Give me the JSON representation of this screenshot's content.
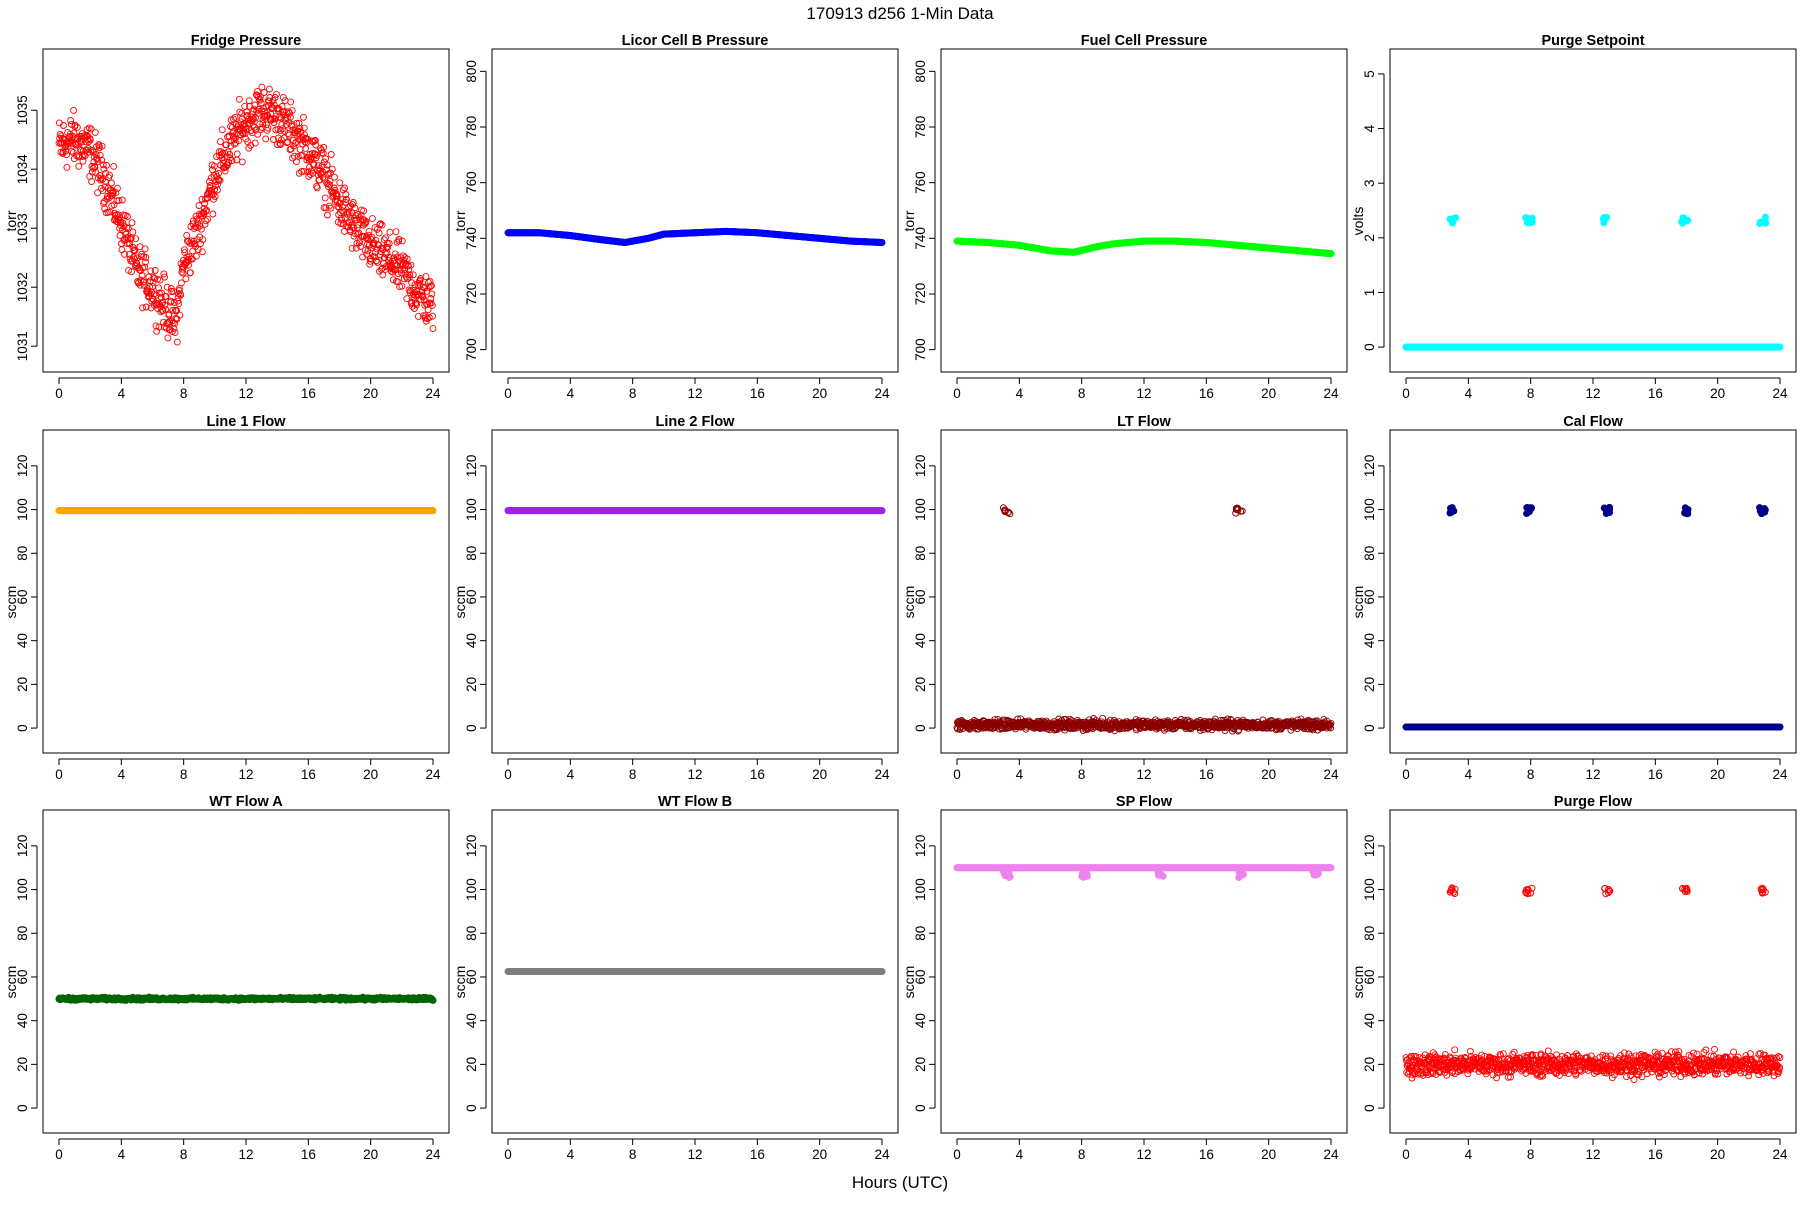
{
  "figure": {
    "title": "170913   d256   1-Min Data",
    "xlabel": "Hours (UTC)"
  },
  "chart_data": [
    {
      "type": "scatter",
      "title": "Fridge Pressure",
      "ylabel": "torr",
      "color": "#ff0000",
      "marker": "open-circle",
      "xlim": [
        0,
        24
      ],
      "xticks": [
        0,
        4,
        8,
        12,
        16,
        20,
        24
      ],
      "ylim": [
        1030.8,
        1035.8
      ],
      "yticks": [
        1031,
        1032,
        1033,
        1034,
        1035
      ],
      "series": [
        {
          "x": [
            0,
            1,
            2,
            3,
            4,
            5,
            6,
            7,
            7.5,
            8,
            9,
            10,
            11,
            12,
            13,
            14,
            15,
            16,
            17,
            18,
            19,
            20,
            21,
            22,
            23,
            24
          ],
          "y": [
            1034.4,
            1034.5,
            1034.3,
            1033.8,
            1033.1,
            1032.3,
            1032.0,
            1031.6,
            1031.4,
            1032.4,
            1033.0,
            1033.9,
            1034.4,
            1034.8,
            1035.0,
            1034.9,
            1034.6,
            1034.3,
            1033.9,
            1033.4,
            1033.0,
            1032.7,
            1032.5,
            1032.3,
            1031.9,
            1031.7
          ]
        }
      ],
      "scatter_spread": 0.45
    },
    {
      "type": "scatter",
      "title": "Licor Cell B Pressure",
      "ylabel": "torr",
      "color": "#0000ff",
      "marker": "filled",
      "xlim": [
        0,
        24
      ],
      "xticks": [
        0,
        4,
        8,
        12,
        16,
        20,
        24
      ],
      "ylim": [
        697,
        803
      ],
      "yticks": [
        700,
        720,
        740,
        760,
        780,
        800
      ],
      "series": [
        {
          "x": [
            0,
            2,
            4,
            6,
            7.5,
            9,
            10,
            12,
            14,
            16,
            18,
            20,
            22,
            24
          ],
          "y": [
            742,
            742,
            741,
            739.5,
            738.5,
            740,
            741.5,
            742,
            742.5,
            742,
            741,
            740,
            739,
            738.5
          ]
        }
      ],
      "scatter_spread": 0
    },
    {
      "type": "scatter",
      "title": "Fuel Cell Pressure",
      "ylabel": "torr",
      "color": "#00ff00",
      "marker": "filled",
      "xlim": [
        0,
        24
      ],
      "xticks": [
        0,
        4,
        8,
        12,
        16,
        20,
        24
      ],
      "ylim": [
        697,
        803
      ],
      "yticks": [
        700,
        720,
        740,
        760,
        780,
        800
      ],
      "series": [
        {
          "x": [
            0,
            2,
            4,
            6,
            7.5,
            9,
            10,
            12,
            14,
            16,
            18,
            20,
            22,
            24
          ],
          "y": [
            739,
            738.5,
            737.5,
            735.5,
            735,
            737,
            738,
            739,
            739,
            738.5,
            737.5,
            736.5,
            735.5,
            734.5
          ]
        }
      ],
      "scatter_spread": 0
    },
    {
      "type": "scatter",
      "title": "Purge Setpoint",
      "ylabel": "volts",
      "color": "#00ffff",
      "marker": "filled",
      "xlim": [
        0,
        24
      ],
      "xticks": [
        0,
        4,
        8,
        12,
        16,
        20,
        24
      ],
      "ylim": [
        -0.2,
        5.2
      ],
      "yticks": [
        0,
        1,
        2,
        3,
        4,
        5
      ],
      "series": [
        {
          "x": [
            0,
            24
          ],
          "y": [
            0,
            0
          ]
        }
      ],
      "scatter_spread": 0,
      "clusters": {
        "x": [
          3,
          7.9,
          12.9,
          17.9,
          22.9
        ],
        "y": 2.32,
        "color": "#00ffff"
      }
    },
    {
      "type": "scatter",
      "title": "Line 1 Flow",
      "ylabel": "sccm",
      "color": "#ffa500",
      "marker": "filled",
      "xlim": [
        0,
        24
      ],
      "xticks": [
        0,
        4,
        8,
        12,
        16,
        20,
        24
      ],
      "ylim": [
        -5,
        130
      ],
      "yticks": [
        0,
        20,
        40,
        60,
        80,
        100,
        120
      ],
      "series": [
        {
          "x": [
            0,
            24
          ],
          "y": [
            99.5,
            99.5
          ]
        }
      ],
      "scatter_spread": 0
    },
    {
      "type": "scatter",
      "title": "Line 2 Flow",
      "ylabel": "sccm",
      "color": "#a020f0",
      "marker": "filled",
      "xlim": [
        0,
        24
      ],
      "xticks": [
        0,
        4,
        8,
        12,
        16,
        20,
        24
      ],
      "ylim": [
        -5,
        130
      ],
      "yticks": [
        0,
        20,
        40,
        60,
        80,
        100,
        120
      ],
      "series": [
        {
          "x": [
            0,
            24
          ],
          "y": [
            99.5,
            99.5
          ]
        }
      ],
      "scatter_spread": 0
    },
    {
      "type": "scatter",
      "title": "LT Flow",
      "ylabel": "sccm",
      "color": "#8b0000",
      "marker": "open-circle",
      "xlim": [
        0,
        24
      ],
      "xticks": [
        0,
        4,
        8,
        12,
        16,
        20,
        24
      ],
      "ylim": [
        -5,
        130
      ],
      "yticks": [
        0,
        20,
        40,
        60,
        80,
        100,
        120
      ],
      "series": [
        {
          "x": [
            0,
            24
          ],
          "y": [
            1.5,
            1.5
          ]
        }
      ],
      "scatter_spread": 2.2,
      "clusters": {
        "x": [
          3.2,
          18.1
        ],
        "y": 99.5,
        "color": "#8b0000"
      }
    },
    {
      "type": "scatter",
      "title": "Cal Flow",
      "ylabel": "sccm",
      "color": "#00008b",
      "marker": "filled",
      "xlim": [
        0,
        24
      ],
      "xticks": [
        0,
        4,
        8,
        12,
        16,
        20,
        24
      ],
      "ylim": [
        -5,
        130
      ],
      "yticks": [
        0,
        20,
        40,
        60,
        80,
        100,
        120
      ],
      "series": [
        {
          "x": [
            0,
            24
          ],
          "y": [
            0.5,
            0.5
          ]
        }
      ],
      "scatter_spread": 0,
      "clusters": {
        "x": [
          3,
          7.9,
          12.9,
          17.9,
          22.9
        ],
        "y": 99.5,
        "color": "#00008b"
      }
    },
    {
      "type": "scatter",
      "title": "WT Flow A",
      "ylabel": "sccm",
      "color": "#006400",
      "marker": "filled",
      "xlim": [
        0,
        24
      ],
      "xticks": [
        0,
        4,
        8,
        12,
        16,
        20,
        24
      ],
      "ylim": [
        -5,
        130
      ],
      "yticks": [
        0,
        20,
        40,
        60,
        80,
        100,
        120
      ],
      "series": [
        {
          "x": [
            0,
            24
          ],
          "y": [
            50,
            50
          ]
        }
      ],
      "scatter_spread": 0.6
    },
    {
      "type": "scatter",
      "title": "WT Flow B",
      "ylabel": "sccm",
      "color": "#7f7f7f",
      "marker": "filled",
      "xlim": [
        0,
        24
      ],
      "xticks": [
        0,
        4,
        8,
        12,
        16,
        20,
        24
      ],
      "ylim": [
        -5,
        130
      ],
      "yticks": [
        0,
        20,
        40,
        60,
        80,
        100,
        120
      ],
      "series": [
        {
          "x": [
            0,
            24
          ],
          "y": [
            62.5,
            62.5
          ]
        }
      ],
      "scatter_spread": 0
    },
    {
      "type": "scatter",
      "title": "SP Flow",
      "ylabel": "sccm",
      "color": "#ee82ee",
      "marker": "filled",
      "xlim": [
        0,
        24
      ],
      "xticks": [
        0,
        4,
        8,
        12,
        16,
        20,
        24
      ],
      "ylim": [
        -5,
        130
      ],
      "yticks": [
        0,
        20,
        40,
        60,
        80,
        100,
        120
      ],
      "series": [
        {
          "x": [
            0,
            24
          ],
          "y": [
            110,
            110
          ]
        }
      ],
      "scatter_spread": 0,
      "clusters": {
        "x": [
          3.2,
          8.2,
          13.1,
          18.2,
          23.0
        ],
        "y": 107,
        "color": "#ee82ee"
      }
    },
    {
      "type": "scatter",
      "title": "Purge Flow",
      "ylabel": "sccm",
      "color": "#ff0000",
      "marker": "open-circle",
      "xlim": [
        0,
        24
      ],
      "xticks": [
        0,
        4,
        8,
        12,
        16,
        20,
        24
      ],
      "ylim": [
        -5,
        130
      ],
      "yticks": [
        0,
        20,
        40,
        60,
        80,
        100,
        120
      ],
      "series": [
        {
          "x": [
            0,
            24
          ],
          "y": [
            20,
            20
          ]
        }
      ],
      "scatter_spread": 5,
      "clusters": {
        "x": [
          3,
          7.9,
          12.9,
          17.9,
          22.9
        ],
        "y": 99.5,
        "color": "#ff0000"
      }
    }
  ]
}
